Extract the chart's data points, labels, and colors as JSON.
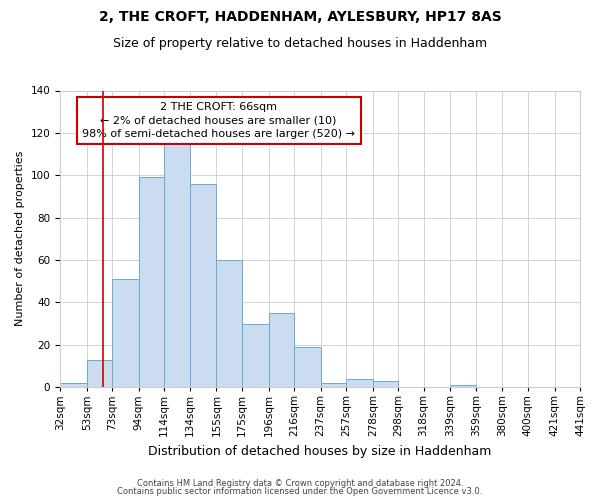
{
  "title": "2, THE CROFT, HADDENHAM, AYLESBURY, HP17 8AS",
  "subtitle": "Size of property relative to detached houses in Haddenham",
  "xlabel": "Distribution of detached houses by size in Haddenham",
  "ylabel": "Number of detached properties",
  "bin_edges": [
    32,
    53,
    73,
    94,
    114,
    134,
    155,
    175,
    196,
    216,
    237,
    257,
    278,
    298,
    318,
    339,
    359,
    380,
    400,
    421,
    441
  ],
  "bar_heights": [
    2,
    13,
    51,
    99,
    116,
    96,
    60,
    30,
    35,
    19,
    2,
    4,
    3,
    0,
    0,
    1,
    0,
    0,
    0,
    0,
    1
  ],
  "bar_color": "#ccdcf0",
  "bar_edge_color": "#6aaad4",
  "grid_color": "#cccccc",
  "property_line_x": 66,
  "property_line_color": "#cc0000",
  "annotation_box_color": "#cc0000",
  "annotation_line1": "2 THE CROFT: 66sqm",
  "annotation_line2": "← 2% of detached houses are smaller (10)",
  "annotation_line3": "98% of semi-detached houses are larger (520) →",
  "ylim": [
    0,
    140
  ],
  "yticks": [
    0,
    20,
    40,
    60,
    80,
    100,
    120,
    140
  ],
  "tick_labels": [
    "32sqm",
    "53sqm",
    "73sqm",
    "94sqm",
    "114sqm",
    "134sqm",
    "155sqm",
    "175sqm",
    "196sqm",
    "216sqm",
    "237sqm",
    "257sqm",
    "278sqm",
    "298sqm",
    "318sqm",
    "339sqm",
    "359sqm",
    "380sqm",
    "400sqm",
    "421sqm",
    "441sqm"
  ],
  "footer_line1": "Contains HM Land Registry data © Crown copyright and database right 2024.",
  "footer_line2": "Contains public sector information licensed under the Open Government Licence v3.0.",
  "background_color": "#ffffff",
  "title_fontsize": 10,
  "subtitle_fontsize": 9,
  "axis_label_fontsize": 9,
  "tick_fontsize": 7.5,
  "ylabel_fontsize": 8
}
